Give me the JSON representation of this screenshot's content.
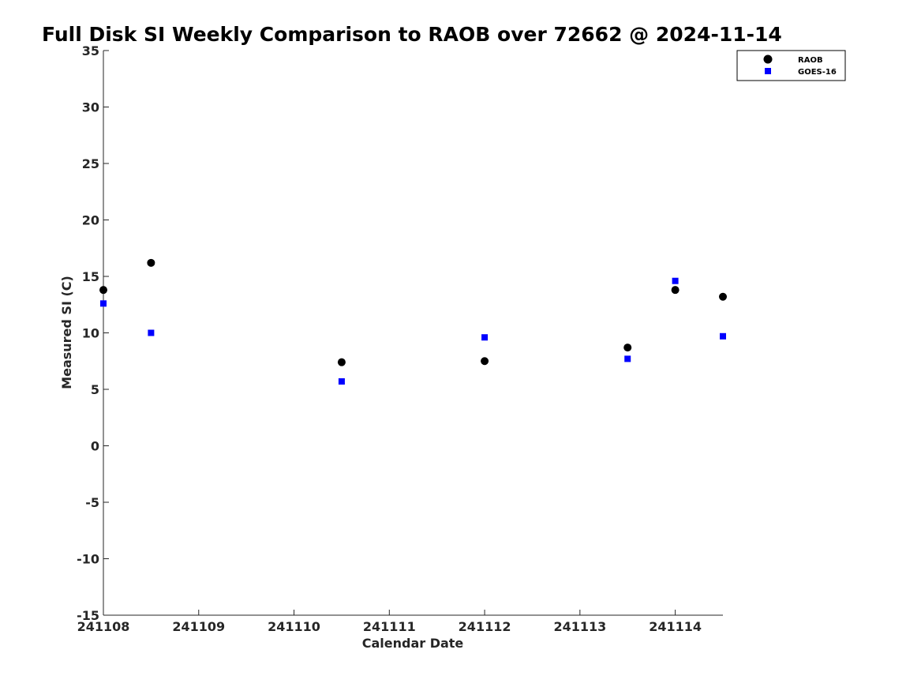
{
  "chart_data": {
    "type": "scatter",
    "title": "Full Disk SI Weekly Comparison to RAOB over 72662 @ 2024-11-14",
    "xlabel": "Calendar Date",
    "ylabel": "Measured SI (C)",
    "xlim": [
      "2024-11-08 00:00",
      "2024-11-14 12:00"
    ],
    "ylim": [
      -15,
      35
    ],
    "x_ticks": [
      {
        "date": "2024-11-08",
        "label": "241108"
      },
      {
        "date": "2024-11-09",
        "label": "241109"
      },
      {
        "date": "2024-11-10",
        "label": "241110"
      },
      {
        "date": "2024-11-11",
        "label": "241111"
      },
      {
        "date": "2024-11-12",
        "label": "241112"
      },
      {
        "date": "2024-11-13",
        "label": "241113"
      },
      {
        "date": "2024-11-14",
        "label": "241114"
      }
    ],
    "y_ticks": [
      35,
      30,
      25,
      20,
      15,
      10,
      5,
      0,
      -5,
      -10,
      -15
    ],
    "grid": false,
    "legend_position": "top-right",
    "series": [
      {
        "name": "RAOB",
        "marker": "circle",
        "color": "#000000",
        "points": [
          {
            "x": "2024-11-08 00:00",
            "y": 13.8
          },
          {
            "x": "2024-11-08 12:00",
            "y": 16.2
          },
          {
            "x": "2024-11-10 12:00",
            "y": 7.4
          },
          {
            "x": "2024-11-12 00:00",
            "y": 7.5
          },
          {
            "x": "2024-11-13 12:00",
            "y": 8.7
          },
          {
            "x": "2024-11-14 00:00",
            "y": 13.8
          },
          {
            "x": "2024-11-14 12:00",
            "y": 13.2
          }
        ]
      },
      {
        "name": "GOES-16",
        "marker": "square",
        "color": "#0000ff",
        "points": [
          {
            "x": "2024-11-08 00:00",
            "y": 12.6
          },
          {
            "x": "2024-11-08 12:00",
            "y": 10.0
          },
          {
            "x": "2024-11-10 12:00",
            "y": 5.7
          },
          {
            "x": "2024-11-12 00:00",
            "y": 9.6
          },
          {
            "x": "2024-11-13 12:00",
            "y": 7.7
          },
          {
            "x": "2024-11-14 00:00",
            "y": 14.6
          },
          {
            "x": "2024-11-14 12:00",
            "y": 9.7
          }
        ]
      }
    ]
  }
}
